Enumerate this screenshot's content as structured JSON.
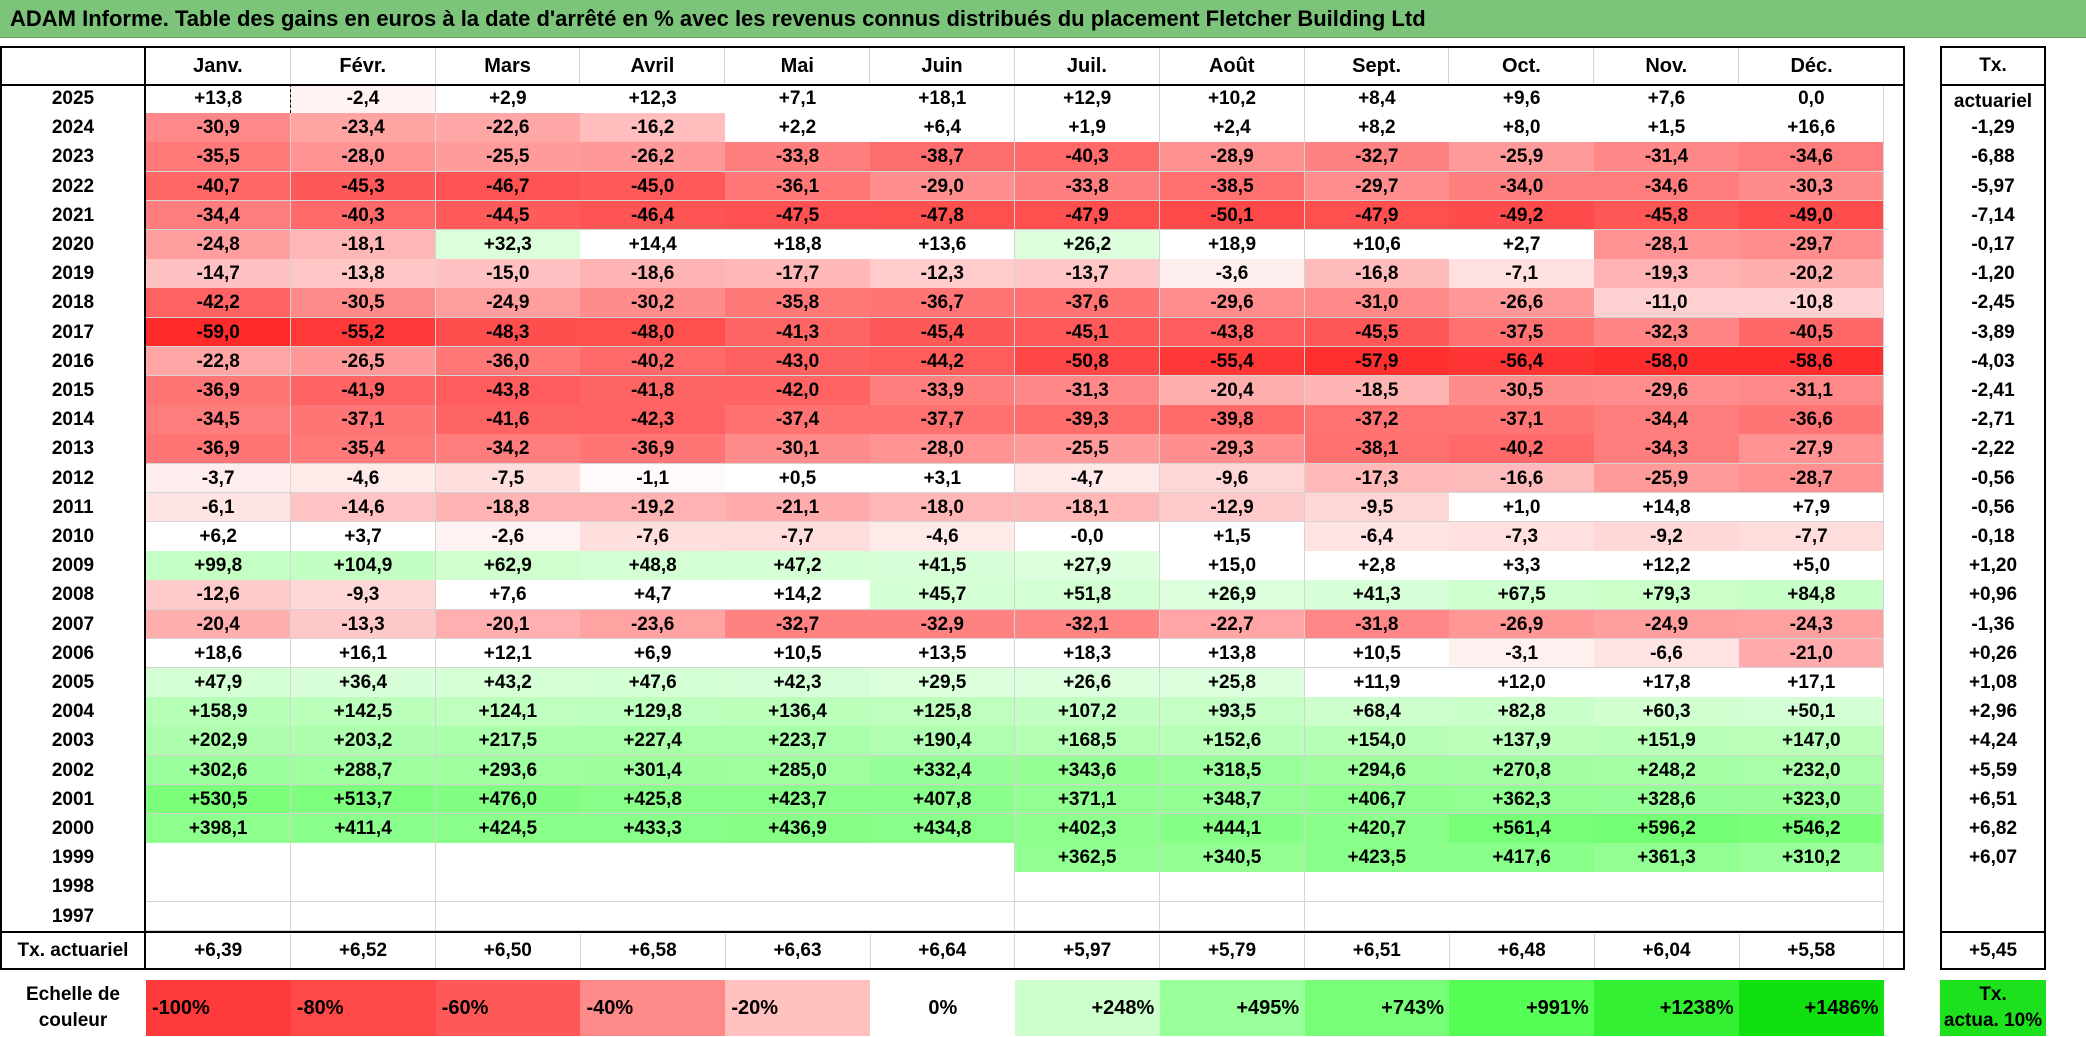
{
  "title": "ADAM Informe. Table des gains en euros à la date d'arrêté en % avec les revenus connus distribués du placement Fletcher Building Ltd",
  "months": [
    "Janv.",
    "Févr.",
    "Mars",
    "Avril",
    "Mai",
    "Juin",
    "Juil.",
    "Août",
    "Sept.",
    "Oct.",
    "Nov.",
    "Déc."
  ],
  "actuarial_header": "Tx. actuariel",
  "rows": [
    {
      "year": "2025",
      "values": [
        "+13,8",
        "-2,4",
        "+2,9",
        "+12,3",
        "+7,1",
        "+18,1",
        "+12,9",
        "+10,2",
        "+8,4",
        "+9,6",
        "+7,6",
        "0,0"
      ],
      "rate": ""
    },
    {
      "year": "2024",
      "values": [
        "-30,9",
        "-23,4",
        "-22,6",
        "-16,2",
        "+2,2",
        "+6,4",
        "+1,9",
        "+2,4",
        "+8,2",
        "+8,0",
        "+1,5",
        "+16,6"
      ],
      "rate": "-1,29"
    },
    {
      "year": "2023",
      "values": [
        "-35,5",
        "-28,0",
        "-25,5",
        "-26,2",
        "-33,8",
        "-38,7",
        "-40,3",
        "-28,9",
        "-32,7",
        "-25,9",
        "-31,4",
        "-34,6"
      ],
      "rate": "-6,88"
    },
    {
      "year": "2022",
      "values": [
        "-40,7",
        "-45,3",
        "-46,7",
        "-45,0",
        "-36,1",
        "-29,0",
        "-33,8",
        "-38,5",
        "-29,7",
        "-34,0",
        "-34,6",
        "-30,3"
      ],
      "rate": "-5,97"
    },
    {
      "year": "2021",
      "values": [
        "-34,4",
        "-40,3",
        "-44,5",
        "-46,4",
        "-47,5",
        "-47,8",
        "-47,9",
        "-50,1",
        "-47,9",
        "-49,2",
        "-45,8",
        "-49,0"
      ],
      "rate": "-7,14"
    },
    {
      "year": "2020",
      "values": [
        "-24,8",
        "-18,1",
        "+32,3",
        "+14,4",
        "+18,8",
        "+13,6",
        "+26,2",
        "+18,9",
        "+10,6",
        "+2,7",
        "-28,1",
        "-29,7"
      ],
      "rate": "-0,17"
    },
    {
      "year": "2019",
      "values": [
        "-14,7",
        "-13,8",
        "-15,0",
        "-18,6",
        "-17,7",
        "-12,3",
        "-13,7",
        "-3,6",
        "-16,8",
        "-7,1",
        "-19,3",
        "-20,2"
      ],
      "rate": "-1,20"
    },
    {
      "year": "2018",
      "values": [
        "-42,2",
        "-30,5",
        "-24,9",
        "-30,2",
        "-35,8",
        "-36,7",
        "-37,6",
        "-29,6",
        "-31,0",
        "-26,6",
        "-11,0",
        "-10,8"
      ],
      "rate": "-2,45"
    },
    {
      "year": "2017",
      "values": [
        "-59,0",
        "-55,2",
        "-48,3",
        "-48,0",
        "-41,3",
        "-45,4",
        "-45,1",
        "-43,8",
        "-45,5",
        "-37,5",
        "-32,3",
        "-40,5"
      ],
      "rate": "-3,89"
    },
    {
      "year": "2016",
      "values": [
        "-22,8",
        "-26,5",
        "-36,0",
        "-40,2",
        "-43,0",
        "-44,2",
        "-50,8",
        "-55,4",
        "-57,9",
        "-56,4",
        "-58,0",
        "-58,6"
      ],
      "rate": "-4,03"
    },
    {
      "year": "2015",
      "values": [
        "-36,9",
        "-41,9",
        "-43,8",
        "-41,8",
        "-42,0",
        "-33,9",
        "-31,3",
        "-20,4",
        "-18,5",
        "-30,5",
        "-29,6",
        "-31,1"
      ],
      "rate": "-2,41"
    },
    {
      "year": "2014",
      "values": [
        "-34,5",
        "-37,1",
        "-41,6",
        "-42,3",
        "-37,4",
        "-37,7",
        "-39,3",
        "-39,8",
        "-37,2",
        "-37,1",
        "-34,4",
        "-36,6"
      ],
      "rate": "-2,71"
    },
    {
      "year": "2013",
      "values": [
        "-36,9",
        "-35,4",
        "-34,2",
        "-36,9",
        "-30,1",
        "-28,0",
        "-25,5",
        "-29,3",
        "-38,1",
        "-40,2",
        "-34,3",
        "-27,9"
      ],
      "rate": "-2,22"
    },
    {
      "year": "2012",
      "values": [
        "-3,7",
        "-4,6",
        "-7,5",
        "-1,1",
        "+0,5",
        "+3,1",
        "-4,7",
        "-9,6",
        "-17,3",
        "-16,6",
        "-25,9",
        "-28,7"
      ],
      "rate": "-0,56"
    },
    {
      "year": "2011",
      "values": [
        "-6,1",
        "-14,6",
        "-18,8",
        "-19,2",
        "-21,1",
        "-18,0",
        "-18,1",
        "-12,9",
        "-9,5",
        "+1,0",
        "+14,8",
        "+7,9"
      ],
      "rate": "-0,56"
    },
    {
      "year": "2010",
      "values": [
        "+6,2",
        "+3,7",
        "-2,6",
        "-7,6",
        "-7,7",
        "-4,6",
        "-0,0",
        "+1,5",
        "-6,4",
        "-7,3",
        "-9,2",
        "-7,7"
      ],
      "rate": "-0,18"
    },
    {
      "year": "2009",
      "values": [
        "+99,8",
        "+104,9",
        "+62,9",
        "+48,8",
        "+47,2",
        "+41,5",
        "+27,9",
        "+15,0",
        "+2,8",
        "+3,3",
        "+12,2",
        "+5,0"
      ],
      "rate": "+1,20"
    },
    {
      "year": "2008",
      "values": [
        "-12,6",
        "-9,3",
        "+7,6",
        "+4,7",
        "+14,2",
        "+45,7",
        "+51,8",
        "+26,9",
        "+41,3",
        "+67,5",
        "+79,3",
        "+84,8"
      ],
      "rate": "+0,96"
    },
    {
      "year": "2007",
      "values": [
        "-20,4",
        "-13,3",
        "-20,1",
        "-23,6",
        "-32,7",
        "-32,9",
        "-32,1",
        "-22,7",
        "-31,8",
        "-26,9",
        "-24,9",
        "-24,3"
      ],
      "rate": "-1,36"
    },
    {
      "year": "2006",
      "values": [
        "+18,6",
        "+16,1",
        "+12,1",
        "+6,9",
        "+10,5",
        "+13,5",
        "+18,3",
        "+13,8",
        "+10,5",
        "-3,1",
        "-6,6",
        "-21,0"
      ],
      "rate": "+0,26"
    },
    {
      "year": "2005",
      "values": [
        "+47,9",
        "+36,4",
        "+43,2",
        "+47,6",
        "+42,3",
        "+29,5",
        "+26,6",
        "+25,8",
        "+11,9",
        "+12,0",
        "+17,8",
        "+17,1"
      ],
      "rate": "+1,08"
    },
    {
      "year": "2004",
      "values": [
        "+158,9",
        "+142,5",
        "+124,1",
        "+129,8",
        "+136,4",
        "+125,8",
        "+107,2",
        "+93,5",
        "+68,4",
        "+82,8",
        "+60,3",
        "+50,1"
      ],
      "rate": "+2,96"
    },
    {
      "year": "2003",
      "values": [
        "+202,9",
        "+203,2",
        "+217,5",
        "+227,4",
        "+223,7",
        "+190,4",
        "+168,5",
        "+152,6",
        "+154,0",
        "+137,9",
        "+151,9",
        "+147,0"
      ],
      "rate": "+4,24"
    },
    {
      "year": "2002",
      "values": [
        "+302,6",
        "+288,7",
        "+293,6",
        "+301,4",
        "+285,0",
        "+332,4",
        "+343,6",
        "+318,5",
        "+294,6",
        "+270,8",
        "+248,2",
        "+232,0"
      ],
      "rate": "+5,59"
    },
    {
      "year": "2001",
      "values": [
        "+530,5",
        "+513,7",
        "+476,0",
        "+425,8",
        "+423,7",
        "+407,8",
        "+371,1",
        "+348,7",
        "+406,7",
        "+362,3",
        "+328,6",
        "+323,0"
      ],
      "rate": "+6,51"
    },
    {
      "year": "2000",
      "values": [
        "+398,1",
        "+411,4",
        "+424,5",
        "+433,3",
        "+436,9",
        "+434,8",
        "+402,3",
        "+444,1",
        "+420,7",
        "+561,4",
        "+596,2",
        "+546,2"
      ],
      "rate": "+6,82"
    },
    {
      "year": "1999",
      "values": [
        "",
        "",
        "",
        "",
        "",
        "",
        "+362,5",
        "+340,5",
        "+423,5",
        "+417,6",
        "+361,3",
        "+310,2"
      ],
      "rate": "+6,07"
    },
    {
      "year": "1998",
      "values": [
        "",
        "",
        "",
        "",
        "",
        "",
        "",
        "",
        "",
        "",
        "",
        ""
      ],
      "rate": ""
    },
    {
      "year": "1997",
      "values": [
        "",
        "",
        "",
        "",
        "",
        "",
        "",
        "",
        "",
        "",
        "",
        ""
      ],
      "rate": ""
    }
  ],
  "footer": {
    "label": "Tx. actuariel",
    "values": [
      "+6,39",
      "+6,52",
      "+6,50",
      "+6,58",
      "+6,63",
      "+6,64",
      "+5,97",
      "+5,79",
      "+6,51",
      "+6,48",
      "+6,04",
      "+5,58"
    ],
    "total": "+5,45"
  },
  "scale": {
    "label_line1": "Echelle de",
    "label_line2": "couleur",
    "steps": [
      {
        "label": "-100%",
        "color": "#ff3a3a",
        "align": "left"
      },
      {
        "label": "-80%",
        "color": "#ff4848",
        "align": "left"
      },
      {
        "label": "-60%",
        "color": "#ff5858",
        "align": "left"
      },
      {
        "label": "-40%",
        "color": "#ff8a8a",
        "align": "left"
      },
      {
        "label": "-20%",
        "color": "#ffc0c0",
        "align": "left"
      },
      {
        "label": "0%",
        "color": "#ffffff",
        "align": "center"
      },
      {
        "label": "+248%",
        "color": "#ccffcc",
        "align": "right"
      },
      {
        "label": "+495%",
        "color": "#99ff99",
        "align": "right"
      },
      {
        "label": "+743%",
        "color": "#77ff77",
        "align": "right"
      },
      {
        "label": "+991%",
        "color": "#55ff55",
        "align": "right"
      },
      {
        "label": "+1238%",
        "color": "#33f033",
        "align": "right"
      },
      {
        "label": "+1486%",
        "color": "#10e010",
        "align": "right"
      }
    ],
    "act_line1": "Tx.",
    "act_line2": "actua. 10%",
    "act_color": "#1ee11e"
  }
}
